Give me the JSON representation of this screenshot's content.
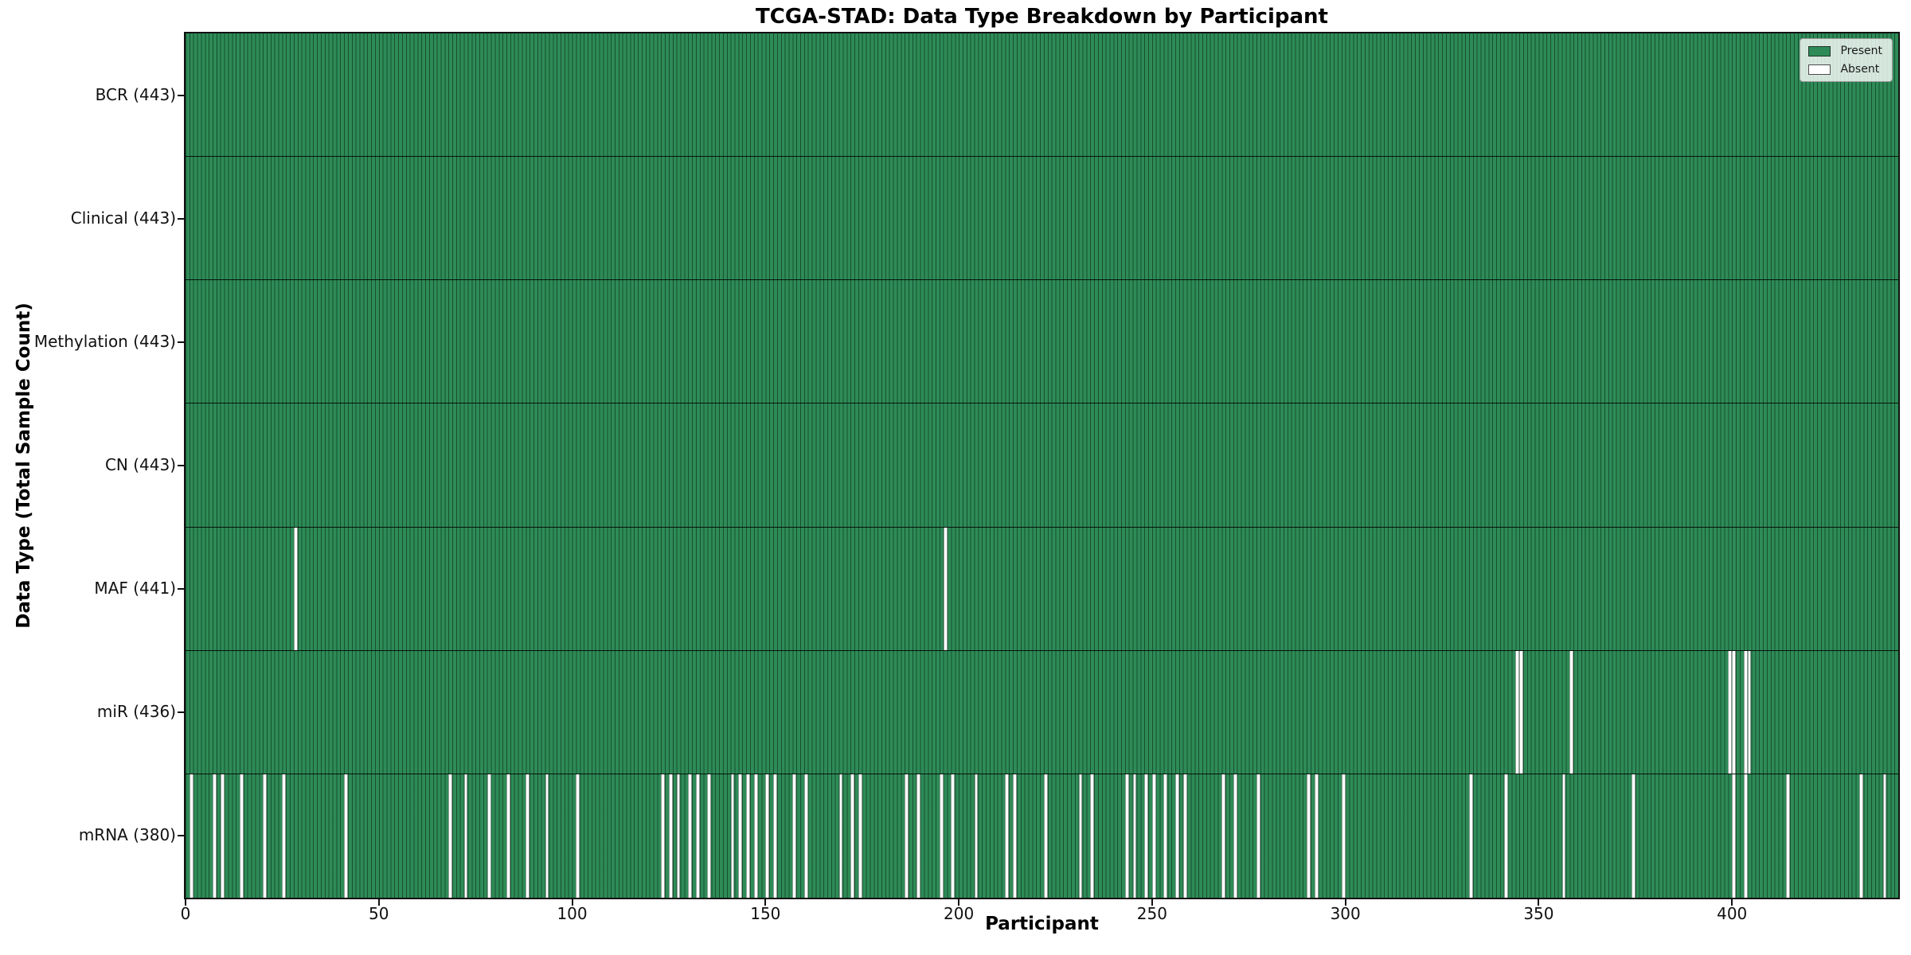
{
  "title": "TCGA-STAD: Data Type Breakdown by Participant",
  "axes": {
    "x_label": "Participant",
    "y_label": "Data Type (Total Sample Count)",
    "x_ticks": [
      0,
      50,
      100,
      150,
      200,
      250,
      300,
      350,
      400
    ],
    "x_range": [
      0,
      443
    ],
    "grid": false
  },
  "legend": {
    "position": "upper right",
    "entries": [
      {
        "label": "Present",
        "color": "#2E8B57"
      },
      {
        "label": "Absent",
        "color": "#FFFFFF"
      }
    ]
  },
  "colors": {
    "present_fill": "#2E8B57",
    "absent_fill": "#FFFFFF",
    "bar_edge": "rgba(8,40,22,0.6)",
    "axis_and_text": "#111111",
    "background": "#FFFFFF"
  },
  "chart_data": {
    "type": "heatmap",
    "title": "TCGA-STAD: Data Type Breakdown by Participant",
    "xlabel": "Participant",
    "ylabel": "Data Type (Total Sample Count)",
    "n_participants": 443,
    "legend_position": "upper right",
    "rows": [
      {
        "label": "BCR (443)",
        "data_type": "BCR",
        "present_count": 443,
        "absent_participants": []
      },
      {
        "label": "Clinical (443)",
        "data_type": "Clinical",
        "present_count": 443,
        "absent_participants": []
      },
      {
        "label": "Methylation (443)",
        "data_type": "Methylation",
        "present_count": 443,
        "absent_participants": []
      },
      {
        "label": "CN (443)",
        "data_type": "CN",
        "present_count": 443,
        "absent_participants": []
      },
      {
        "label": "MAF (441)",
        "data_type": "MAF",
        "present_count": 441,
        "absent_participants": [
          28,
          196
        ]
      },
      {
        "label": "miR (436)",
        "data_type": "miR",
        "present_count": 436,
        "absent_participants": [
          344,
          345,
          358,
          399,
          400,
          403,
          404
        ]
      },
      {
        "label": "mRNA (380)",
        "data_type": "mRNA",
        "present_count": 380,
        "absent_participants": [
          1,
          7,
          9,
          14,
          20,
          25,
          41,
          68,
          72,
          78,
          83,
          88,
          93,
          101,
          123,
          125,
          127,
          130,
          132,
          135,
          141,
          143,
          145,
          147,
          150,
          152,
          157,
          160,
          169,
          172,
          174,
          186,
          189,
          195,
          198,
          204,
          212,
          214,
          222,
          231,
          234,
          243,
          245,
          248,
          250,
          253,
          256,
          258,
          268,
          271,
          277,
          290,
          292,
          299,
          332,
          341,
          356,
          374,
          400,
          403,
          414,
          433,
          439
        ]
      }
    ]
  }
}
